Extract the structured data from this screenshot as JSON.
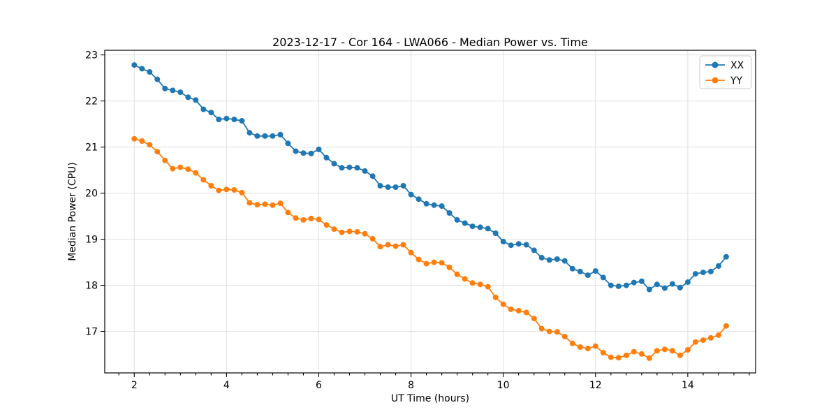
{
  "figure": {
    "title": "2023-12-17 - Cor 164 - LWA066 - Median Power vs. Time",
    "xlabel": "UT Time (hours)",
    "ylabel": "Median Power (CPU)"
  },
  "chart_data": {
    "type": "line",
    "title": "2023-12-17 - Cor 164 - LWA066 - Median Power vs. Time",
    "xlabel": "UT Time (hours)",
    "ylabel": "Median Power (CPU)",
    "xlim": [
      1.36,
      15.47
    ],
    "ylim": [
      16.1,
      23.1
    ],
    "xticks": [
      2,
      4,
      6,
      8,
      10,
      12,
      14
    ],
    "yticks": [
      17,
      18,
      19,
      20,
      21,
      22,
      23
    ],
    "x_minor_step": 0.33333,
    "grid": true,
    "grid_color": "#e0e0e0",
    "legend_position": "upper right",
    "marker": "circle",
    "x": [
      2,
      2.167,
      2.333,
      2.5,
      2.667,
      2.833,
      3,
      3.167,
      3.333,
      3.5,
      3.667,
      3.833,
      4,
      4.167,
      4.333,
      4.5,
      4.667,
      4.833,
      5,
      5.167,
      5.333,
      5.5,
      5.667,
      5.833,
      6,
      6.167,
      6.333,
      6.5,
      6.667,
      6.833,
      7,
      7.167,
      7.333,
      7.5,
      7.667,
      7.833,
      8,
      8.167,
      8.333,
      8.5,
      8.667,
      8.833,
      9,
      9.167,
      9.333,
      9.5,
      9.667,
      9.833,
      10,
      10.167,
      10.333,
      10.5,
      10.667,
      10.833,
      11,
      11.167,
      11.333,
      11.5,
      11.667,
      11.833,
      12,
      12.167,
      12.333,
      12.5,
      12.667,
      12.833,
      13,
      13.167,
      13.333,
      13.5,
      13.667,
      13.833,
      14,
      14.167,
      14.333,
      14.5,
      14.667,
      14.833
    ],
    "series": [
      {
        "name": "XX",
        "color": "#1f77b4",
        "values": [
          22.78,
          22.7,
          22.63,
          22.47,
          22.27,
          22.23,
          22.19,
          22.08,
          22.02,
          21.82,
          21.75,
          21.6,
          21.62,
          21.6,
          21.57,
          21.31,
          21.24,
          21.24,
          21.24,
          21.27,
          21.08,
          20.91,
          20.87,
          20.86,
          20.95,
          20.77,
          20.64,
          20.55,
          20.56,
          20.55,
          20.48,
          20.37,
          20.16,
          20.13,
          20.13,
          20.16,
          19.97,
          19.87,
          19.77,
          19.74,
          19.72,
          19.57,
          19.42,
          19.35,
          19.28,
          19.26,
          19.23,
          19.13,
          18.95,
          18.87,
          18.9,
          18.88,
          18.76,
          18.6,
          18.55,
          18.57,
          18.53,
          18.36,
          18.3,
          18.22,
          18.31,
          18.17,
          18.0,
          17.98,
          18.0,
          18.06,
          18.09,
          17.91,
          18.02,
          17.94,
          18.03,
          17.95,
          18.07,
          18.25,
          18.28,
          18.3,
          18.42,
          18.62
        ]
      },
      {
        "name": "YY",
        "color": "#ff7f0e",
        "values": [
          21.18,
          21.13,
          21.05,
          20.9,
          20.71,
          20.53,
          20.56,
          20.52,
          20.44,
          20.29,
          20.16,
          20.06,
          20.08,
          20.07,
          20.01,
          19.79,
          19.75,
          19.76,
          19.74,
          19.78,
          19.58,
          19.46,
          19.42,
          19.45,
          19.43,
          19.31,
          19.22,
          19.15,
          19.17,
          19.16,
          19.12,
          19.01,
          18.84,
          18.88,
          18.85,
          18.88,
          18.71,
          18.56,
          18.47,
          18.5,
          18.49,
          18.39,
          18.24,
          18.14,
          18.05,
          18.02,
          17.97,
          17.74,
          17.59,
          17.48,
          17.45,
          17.41,
          17.28,
          17.06,
          17.0,
          16.99,
          16.89,
          16.74,
          16.66,
          16.63,
          16.68,
          16.54,
          16.44,
          16.43,
          16.48,
          16.56,
          16.51,
          16.42,
          16.58,
          16.61,
          16.58,
          16.48,
          16.6,
          16.77,
          16.81,
          16.86,
          16.92,
          17.12
        ]
      }
    ]
  }
}
